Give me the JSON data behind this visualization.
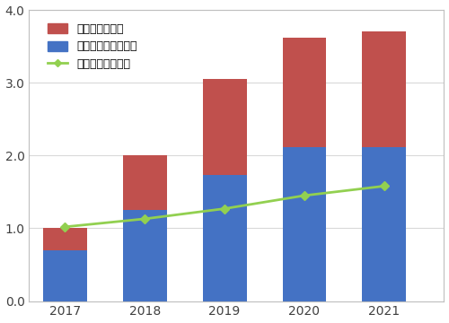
{
  "years": [
    2017,
    2018,
    2019,
    2020,
    2021
  ],
  "blue_values": [
    0.7,
    1.25,
    1.73,
    2.12,
    2.12
  ],
  "red_values": [
    0.3,
    0.75,
    1.32,
    1.5,
    1.58
  ],
  "green_line": [
    1.02,
    1.13,
    1.27,
    1.45,
    1.58
  ],
  "blue_color": "#4472C4",
  "red_color": "#C0504D",
  "green_color": "#92D050",
  "background_color": "#FFFFFF",
  "plot_bg_color": "#FFFFFF",
  "grid_color": "#D9D9D9",
  "ylim": [
    0.0,
    4.0
  ],
  "yticks": [
    0.0,
    1.0,
    2.0,
    3.0,
    4.0
  ],
  "legend_red": "保険金（大口）",
  "legend_blue": "保険金（大口以外）",
  "legend_green": "発電量（太陽光）",
  "bar_width": 0.55
}
